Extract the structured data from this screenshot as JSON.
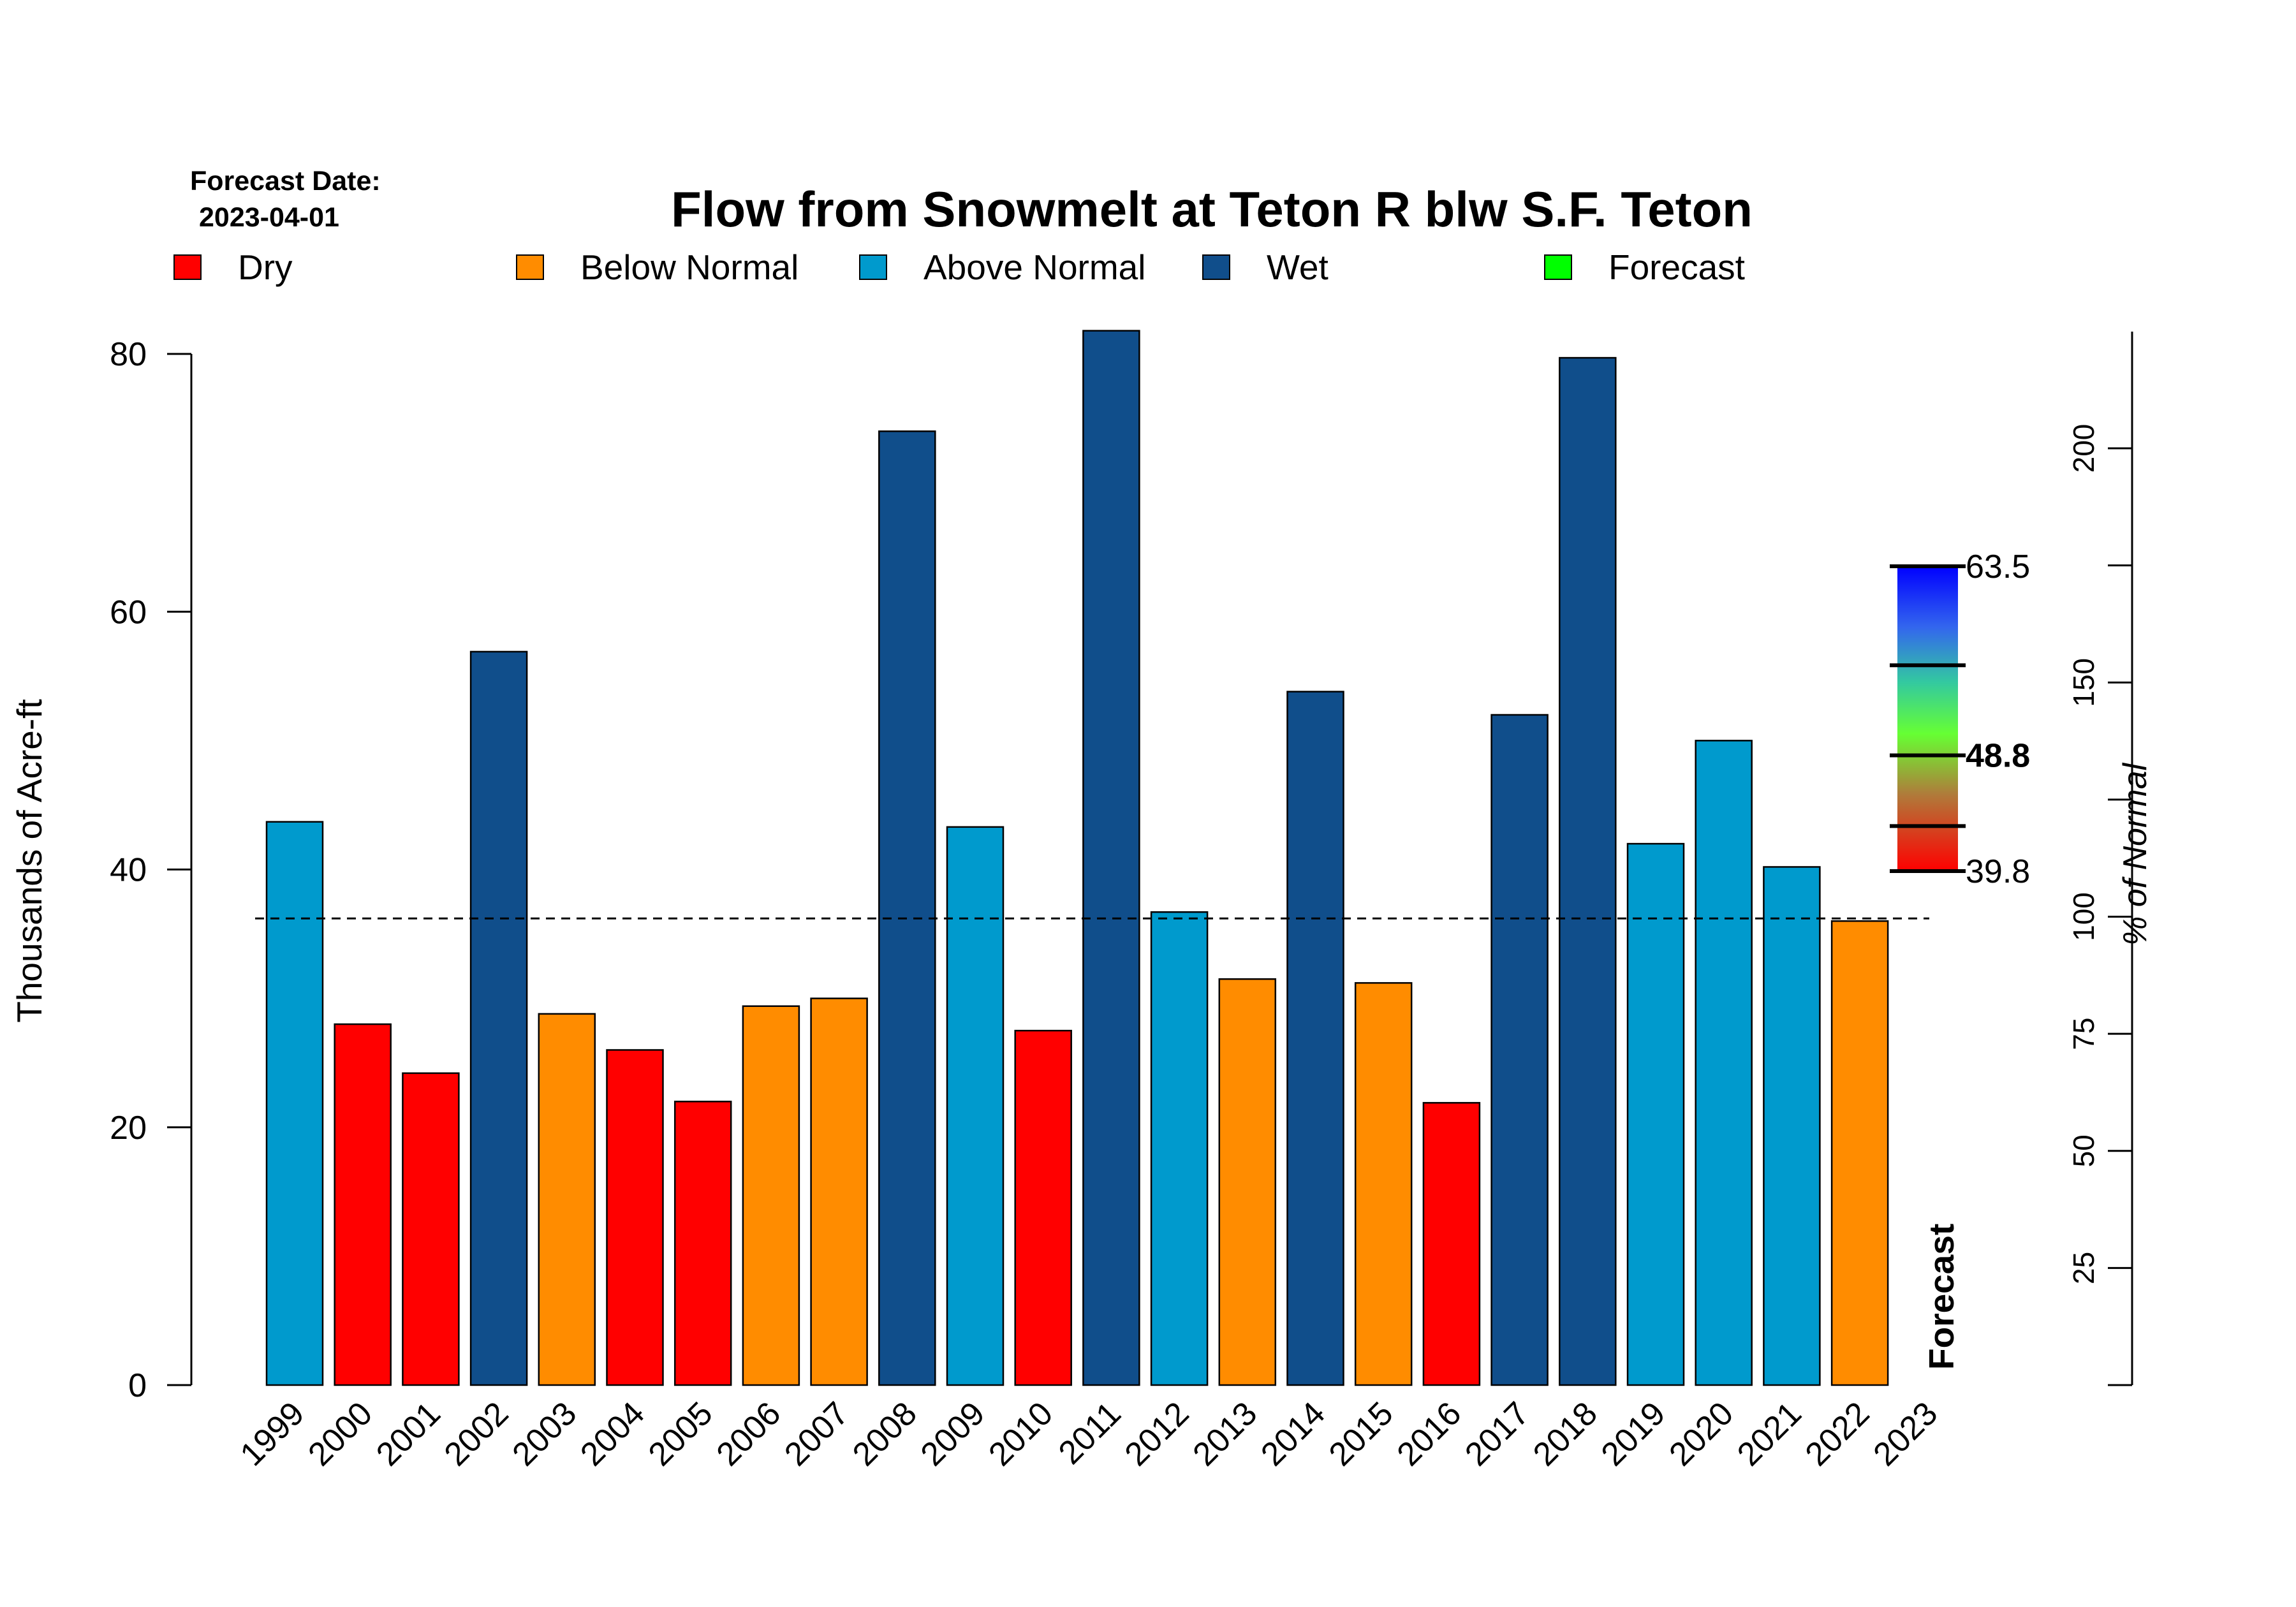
{
  "forecast_date_label": "Forecast Date:",
  "forecast_date": "2023-04-01",
  "legend": [
    {
      "label": "Dry",
      "color": "#ff0000"
    },
    {
      "label": "Below Normal",
      "color": "#ff8c00"
    },
    {
      "label": "Above Normal",
      "color": "#009acd"
    },
    {
      "label": "Wet",
      "color": "#104e8b"
    },
    {
      "label": "Forecast",
      "color": "#00ff00"
    }
  ],
  "forecast_bar_label": "Forecast",
  "chart_data": {
    "type": "bar",
    "title": "Flow from Snowmelt at Teton R blw S.F. Teton",
    "ylabel": "Thousands of Acre-ft",
    "ylabel_right": "% of Normal",
    "ylim": [
      0,
      80
    ],
    "yticks": [
      0,
      20,
      40,
      60,
      80
    ],
    "right_axis_ticks": [
      25,
      50,
      75,
      100,
      150,
      200
    ],
    "normal_value": 36.2,
    "categories": [
      "1999",
      "2000",
      "2001",
      "2002",
      "2003",
      "2004",
      "2005",
      "2006",
      "2007",
      "2008",
      "2009",
      "2010",
      "2011",
      "2012",
      "2013",
      "2014",
      "2015",
      "2016",
      "2017",
      "2018",
      "2019",
      "2020",
      "2021",
      "2022",
      "2023"
    ],
    "values": [
      43.7,
      28.0,
      24.2,
      56.9,
      28.8,
      26.0,
      22.0,
      29.4,
      30.0,
      74.0,
      43.3,
      27.5,
      81.8,
      36.7,
      31.5,
      53.8,
      31.2,
      21.9,
      52.0,
      79.7,
      42.0,
      50.0,
      40.2,
      36.0,
      null
    ],
    "classes": [
      "Above Normal",
      "Dry",
      "Dry",
      "Wet",
      "Below Normal",
      "Dry",
      "Dry",
      "Below Normal",
      "Below Normal",
      "Wet",
      "Above Normal",
      "Dry",
      "Wet",
      "Above Normal",
      "Below Normal",
      "Wet",
      "Below Normal",
      "Dry",
      "Wet",
      "Wet",
      "Above Normal",
      "Above Normal",
      "Above Normal",
      "Below Normal",
      "Forecast"
    ],
    "grid": false,
    "legend_position": "top",
    "forecast_range": {
      "low": "39.8",
      "mid": "48.8",
      "high": "63.5",
      "low_value": 39.8,
      "mid_value": 48.8,
      "high_value": 63.5,
      "marks": [
        39.8,
        43.3,
        48.8,
        55.8,
        63.5
      ]
    }
  }
}
